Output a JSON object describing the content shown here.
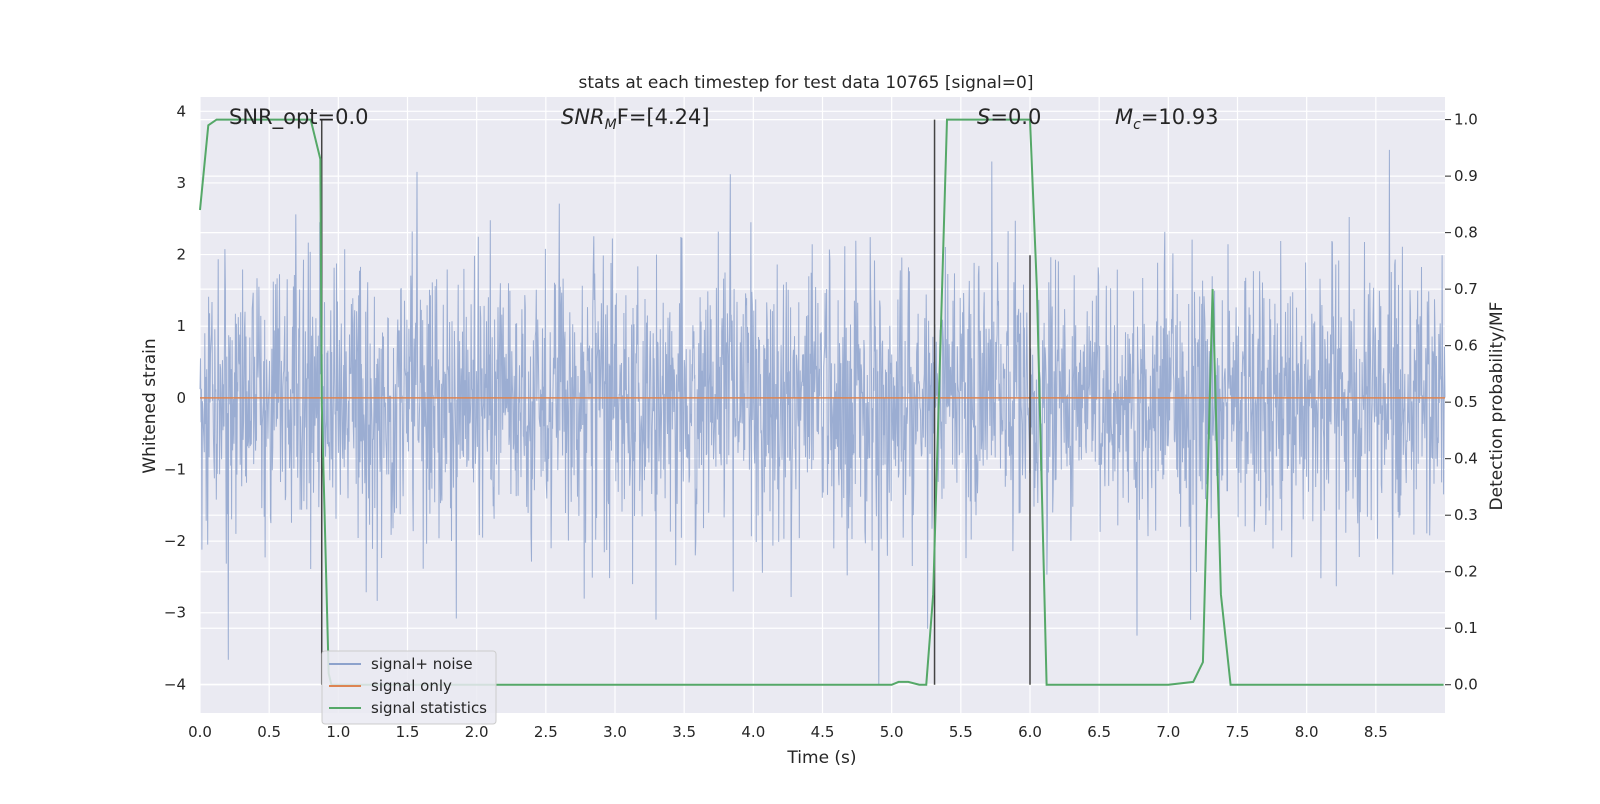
{
  "chart_data": {
    "type": "line",
    "title": "stats at each timestep for test data 10765 [signal=0]",
    "xlabel": "Time (s)",
    "ylabel_left": "Whitened strain",
    "ylabel_right": "Detection probability/MF",
    "xlim": [
      0.0,
      9.0
    ],
    "ylim_left": [
      -4.4,
      4.2
    ],
    "ylim_right": [
      -0.05,
      1.04
    ],
    "x_ticks": [
      0.0,
      0.5,
      1.0,
      1.5,
      2.0,
      2.5,
      3.0,
      3.5,
      4.0,
      4.5,
      5.0,
      5.5,
      6.0,
      6.5,
      7.0,
      7.5,
      8.0,
      8.5
    ],
    "x_tick_labels": [
      "0.0",
      "0.5",
      "1.0",
      "1.5",
      "2.0",
      "2.5",
      "3.0",
      "3.5",
      "4.0",
      "4.5",
      "5.0",
      "5.5",
      "6.0",
      "6.5",
      "7.0",
      "7.5",
      "8.0",
      "8.5"
    ],
    "y_left_ticks": [
      4,
      3,
      2,
      1,
      0,
      -1,
      -2,
      -3,
      -4
    ],
    "y_left_tick_labels": [
      "4",
      "3",
      "2",
      "1",
      "0",
      "−1",
      "−2",
      "−3",
      "−4"
    ],
    "y_right_ticks": [
      1.0,
      0.9,
      0.8,
      0.7,
      0.6,
      0.5,
      0.4,
      0.3,
      0.2,
      0.1,
      0.0
    ],
    "y_right_tick_labels": [
      "1.0",
      "0.9",
      "0.8",
      "0.7",
      "0.6",
      "0.5",
      "0.4",
      "0.3",
      "0.2",
      "0.1",
      "0.0"
    ],
    "annotations": {
      "snr_opt": "SNR_opt=0.0",
      "snr_mf_base": "SNR",
      "snr_mf_sub": "M",
      "snr_mf_rest": "F=[4.24]",
      "s_label": "S",
      "s_rest": "=0.0",
      "mc_base": "M",
      "mc_sub": "c",
      "mc_rest": "=10.93"
    },
    "legend": {
      "position": "lower-left",
      "entries": [
        "signal+ noise",
        "signal only",
        "signal statistics"
      ]
    },
    "series": [
      {
        "name": "signal+ noise",
        "axis": "left",
        "color": "#8da2cc",
        "description_range": [
          -4.0,
          3.85
        ],
        "duration_s": 9.0,
        "sample_rate_hz": 2048
      },
      {
        "name": "signal only",
        "axis": "left",
        "color": "#dd8452",
        "x": [
          0.0,
          9.0
        ],
        "y": [
          0.0,
          0.0
        ]
      },
      {
        "name": "signal statistics",
        "axis": "right",
        "color": "#55a868",
        "x": [
          0.0,
          0.06,
          0.12,
          0.8,
          0.87,
          0.88,
          0.93,
          0.95,
          5.0,
          5.05,
          5.12,
          5.2,
          5.25,
          5.3,
          5.4,
          5.95,
          6.0,
          6.05,
          6.12,
          7.0,
          7.18,
          7.25,
          7.32,
          7.38,
          7.45,
          8.99
        ],
        "y": [
          0.84,
          0.99,
          1.0,
          1.0,
          0.93,
          0.5,
          0.02,
          0.0,
          0.0,
          0.005,
          0.005,
          0.0,
          0.0,
          0.16,
          1.0,
          1.0,
          1.0,
          0.7,
          0.0,
          0.0,
          0.005,
          0.04,
          0.7,
          0.16,
          0.0,
          0.0
        ]
      }
    ],
    "vertical_lines": [
      {
        "x": 0.88,
        "y_from": 0.0,
        "y_to": 1.0,
        "color": "#444444"
      },
      {
        "x": 5.31,
        "y_from": 0.0,
        "y_to": 1.0,
        "color": "#444444"
      },
      {
        "x": 6.0,
        "y_from": 0.0,
        "y_to": 0.76,
        "color": "#444444"
      }
    ]
  }
}
